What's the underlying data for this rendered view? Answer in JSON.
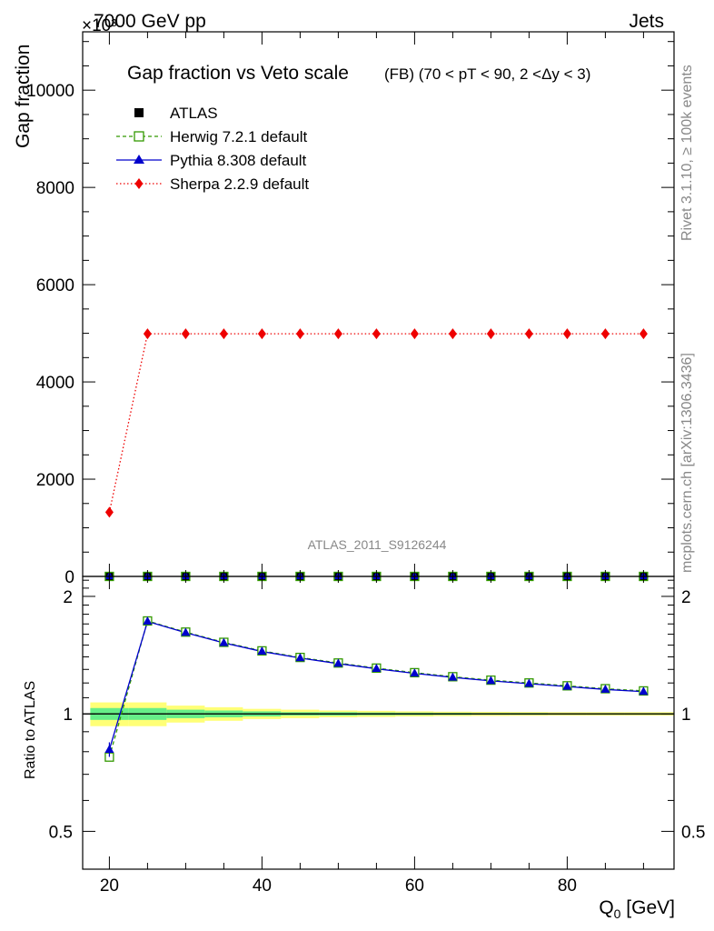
{
  "header": {
    "left": "7000 GeV pp",
    "right": "Jets",
    "exponent": "×10³"
  },
  "side_labels": {
    "top": "Rivet 3.1.10, ≥ 100k events",
    "bottom": "mcplots.cern.ch [arXiv:1306.3436]"
  },
  "watermark": "ATLAS_2011_S9126244",
  "colors": {
    "herwig": "#339900",
    "pythia": "#0000cc",
    "sherpa": "#ee0000",
    "band_inner": "#66ee88",
    "band_outer": "#ffff77"
  },
  "chart_data": [
    {
      "type": "line",
      "title": "Gap fraction vs Veto scale",
      "title_suffix": "(FB) (70 < pT <  90, 2 <Δy < 3)",
      "ylabel": "Gap fraction",
      "xlim": [
        16.5,
        94
      ],
      "ylim": [
        0,
        11200
      ],
      "yticks": [
        0,
        2000,
        4000,
        6000,
        8000,
        10000
      ],
      "ytick_labels": [
        "0",
        "2000",
        "4000",
        "6000",
        "8000",
        "10000"
      ],
      "x": [
        20,
        25,
        30,
        35,
        40,
        45,
        50,
        55,
        60,
        65,
        70,
        75,
        80,
        85,
        90
      ],
      "legend_position": "top-left",
      "series": [
        {
          "name": "ATLAS",
          "marker": "square",
          "values": [
            0,
            0,
            0,
            0,
            0,
            0,
            0,
            0,
            0,
            0,
            0,
            0,
            0,
            0,
            0
          ]
        },
        {
          "name": "Herwig 7.2.1 default",
          "marker": "open-square",
          "line": "dashed",
          "values": [
            0,
            0,
            0,
            0,
            0,
            0,
            0,
            0,
            0,
            0,
            0,
            0,
            0,
            0,
            0
          ]
        },
        {
          "name": "Pythia 8.308 default",
          "marker": "triangle",
          "line": "solid",
          "values": [
            0,
            0,
            0,
            0,
            0,
            0,
            0,
            0,
            0,
            0,
            0,
            0,
            0,
            0,
            0
          ]
        },
        {
          "name": "Sherpa 2.2.9 default",
          "marker": "diamond",
          "line": "dotted",
          "values": [
            1320,
            4990,
            4990,
            4990,
            4990,
            4990,
            4990,
            4990,
            4990,
            4990,
            4990,
            4990,
            4990,
            4990,
            4990
          ]
        }
      ]
    },
    {
      "type": "line",
      "ylabel": "Ratio to ATLAS",
      "xlabel": "Q₀ [GeV]",
      "xlim": [
        16.5,
        94
      ],
      "ylim": [
        0.4,
        2.25
      ],
      "yscale": "log",
      "yticks": [
        0.5,
        1,
        2
      ],
      "ytick_labels": [
        "0.5",
        "1",
        "2"
      ],
      "xticks": [
        20,
        40,
        60,
        80
      ],
      "xtick_labels": [
        "20",
        "40",
        "60",
        "80"
      ],
      "x": [
        20,
        25,
        30,
        35,
        40,
        45,
        50,
        55,
        60,
        65,
        70,
        75,
        80,
        85,
        90
      ],
      "bands": {
        "x_edges": [
          17.5,
          22.5,
          27.5,
          32.5,
          37.5,
          42.5,
          47.5,
          52.5,
          57.5,
          62.5,
          67.5,
          72.5,
          77.5,
          82.5,
          87.5,
          94
        ],
        "inner_half_width": [
          0.035,
          0.035,
          0.025,
          0.02,
          0.015,
          0.01,
          0.01,
          0.008,
          0.007,
          0.006,
          0.005,
          0.005,
          0.004,
          0.004,
          0.004
        ],
        "outer_half_width": [
          0.07,
          0.07,
          0.05,
          0.04,
          0.03,
          0.025,
          0.02,
          0.018,
          0.015,
          0.013,
          0.012,
          0.011,
          0.01,
          0.01,
          0.01
        ]
      },
      "series": [
        {
          "name": "Herwig 7.2.1 default",
          "values": [
            0.775,
            1.73,
            1.62,
            1.525,
            1.45,
            1.395,
            1.35,
            1.31,
            1.275,
            1.245,
            1.22,
            1.2,
            1.18,
            1.16,
            1.145
          ]
        },
        {
          "name": "Pythia 8.308 default",
          "values": [
            0.81,
            1.725,
            1.615,
            1.52,
            1.445,
            1.39,
            1.345,
            1.305,
            1.27,
            1.24,
            1.215,
            1.195,
            1.175,
            1.155,
            1.14
          ]
        }
      ]
    }
  ]
}
